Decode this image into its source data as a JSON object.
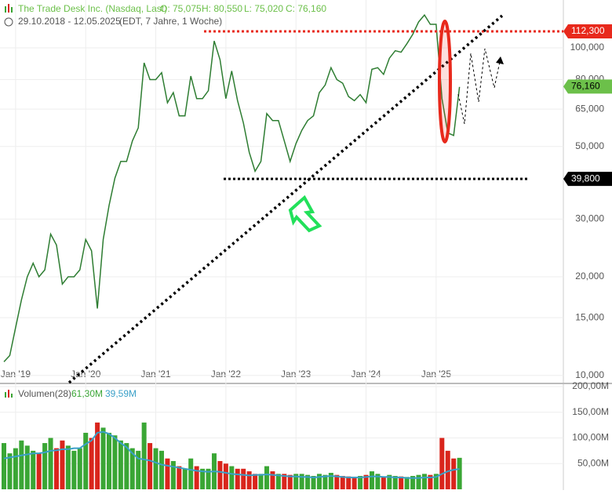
{
  "header": {
    "title": "The Trade Desk Inc. (Nasdaq, Last)",
    "open": "O: 75,075",
    "high": "H: 80,550",
    "low": "L: 75,020",
    "close": "C: 76,160",
    "period": "29.10.2018 - 12.05.2025",
    "details": "(EDT, 7 Jahre, 1 Woche)"
  },
  "chart_data": [
    {
      "type": "line",
      "color": "#2e7d32",
      "log_scale": true,
      "grid": true,
      "categories": [
        null,
        null,
        "Jan '19",
        null,
        null,
        null,
        null,
        null,
        null,
        null,
        null,
        null,
        null,
        null,
        "Jan '20",
        null,
        null,
        null,
        null,
        null,
        null,
        null,
        null,
        null,
        null,
        null,
        "Jan '21",
        null,
        null,
        null,
        null,
        null,
        null,
        null,
        null,
        null,
        null,
        null,
        "Jan '22",
        null,
        null,
        null,
        null,
        null,
        null,
        null,
        null,
        null,
        null,
        null,
        "Jan '23",
        null,
        null,
        null,
        null,
        null,
        null,
        null,
        null,
        null,
        null,
        null,
        "Jan '24",
        null,
        null,
        null,
        null,
        null,
        null,
        null,
        null,
        null,
        null,
        null,
        "Jan '25",
        null,
        null,
        null,
        null
      ],
      "series": [
        {
          "name": "The Trade Desk Inc.",
          "values": [
            11,
            11.5,
            14,
            17,
            20,
            22,
            20,
            21,
            27,
            25,
            19,
            20,
            20,
            21,
            26,
            24,
            16,
            26,
            33,
            40,
            45,
            45,
            52,
            57,
            90,
            80,
            80,
            84,
            68,
            73,
            62,
            62,
            82,
            70,
            70,
            74,
            105,
            92,
            70,
            85,
            69,
            59,
            48,
            42,
            45,
            63,
            60,
            60,
            52,
            45,
            51,
            56,
            60,
            62,
            73,
            77,
            87,
            80,
            78,
            71,
            69,
            72,
            68,
            86,
            87,
            83,
            93,
            98,
            97,
            103,
            110,
            120,
            126,
            118,
            118,
            70,
            55,
            54,
            76
          ]
        }
      ],
      "ylim": [
        9.5,
        140
      ],
      "yticks": [
        {
          "value": 10,
          "label": "10,000"
        },
        {
          "value": 15,
          "label": "15,000"
        },
        {
          "value": 20,
          "label": "20,000"
        },
        {
          "value": 30,
          "label": "30,000"
        },
        {
          "value": 50,
          "label": "50,000"
        },
        {
          "value": 65,
          "label": "65,000"
        },
        {
          "value": 80,
          "label": "80,000"
        },
        {
          "value": 100,
          "label": "100,000"
        }
      ],
      "levels": [
        {
          "value": 112.3,
          "label": "112,300",
          "color": "#e8291c",
          "dotted": true
        },
        {
          "value": 76.16,
          "label": "76,160",
          "color": "#6cc04a",
          "dotted": false
        },
        {
          "value": 39.8,
          "label": "39,800",
          "color": "#000000",
          "dotted": true
        }
      ]
    },
    {
      "type": "bar",
      "title": "Volumen(28)",
      "up_color": "#3aa635",
      "down_color": "#d9251c",
      "series": [
        {
          "name": "61,30M",
          "color": "#3aa635",
          "values": [
            90,
            70,
            80,
            95,
            85,
            75,
            70,
            90,
            100,
            80,
            95,
            85,
            75,
            80,
            110,
            100,
            130,
            120,
            110,
            105,
            95,
            90,
            80,
            75,
            130,
            90,
            80,
            75,
            60,
            55,
            45,
            40,
            60,
            45,
            40,
            40,
            70,
            55,
            50,
            45,
            40,
            40,
            35,
            30,
            30,
            45,
            35,
            30,
            30,
            28,
            30,
            30,
            28,
            26,
            30,
            28,
            32,
            28,
            26,
            25,
            24,
            26,
            28,
            35,
            30,
            25,
            28,
            26,
            25,
            24,
            26,
            28,
            30,
            28,
            30,
            100,
            75,
            60,
            61.3
          ]
        },
        {
          "name": "39,59M",
          "color": "#3aa0c8",
          "values": [
            60,
            62,
            64,
            66,
            68,
            70,
            70,
            72,
            75,
            76,
            78,
            78,
            80,
            80,
            88,
            95,
            110,
            112,
            108,
            100,
            90,
            82,
            70,
            60,
            58,
            56,
            52,
            48,
            46,
            44,
            42,
            40,
            38,
            36,
            35,
            34,
            35,
            34,
            32,
            30,
            29,
            28,
            27,
            28,
            28,
            29,
            28,
            27,
            26,
            25,
            25,
            24,
            24,
            23,
            24,
            25,
            26,
            25,
            24,
            23,
            23,
            23,
            24,
            25,
            25,
            24,
            24,
            23,
            23,
            22,
            22,
            22,
            23,
            23,
            24,
            30,
            35,
            38,
            39.59
          ]
        }
      ],
      "ylim": [
        0,
        200
      ],
      "yticks": [
        {
          "value": 50,
          "label": "50,00M"
        },
        {
          "value": 100,
          "label": "100,00M"
        },
        {
          "value": 150,
          "label": "150,00M"
        },
        {
          "value": 200,
          "label": "200,00M"
        }
      ]
    }
  ]
}
